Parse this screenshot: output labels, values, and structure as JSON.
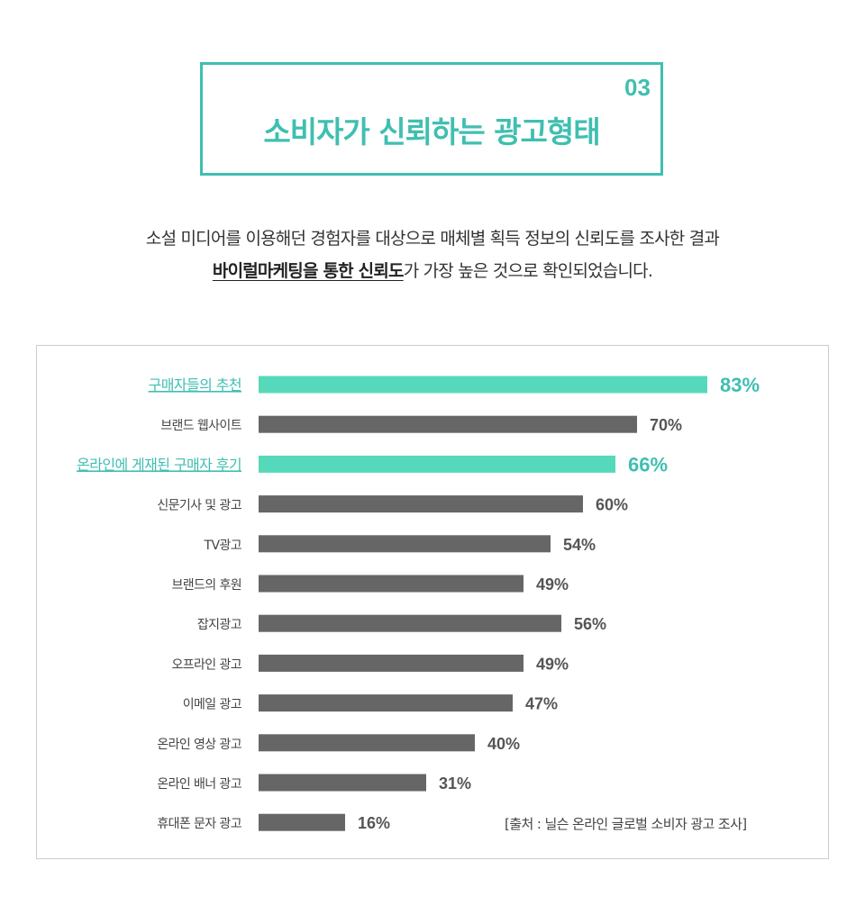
{
  "header": {
    "number": "03",
    "title": "소비자가 신뢰하는 광고형태"
  },
  "description": {
    "line1": "소설 미디어를 이용해던 경험자를 대상으로 매체별 획득 정보의 신뢰도를 조사한 결과",
    "line2_highlight": "바이럴마케팅을 통한 신뢰도",
    "line2_rest": "가 가장 높은 것으로 확인되었습니다."
  },
  "colors": {
    "accent": "#3fbfb0",
    "highlight_bar": "#55d9ba",
    "default_bar": "#666666",
    "default_text": "#444444"
  },
  "chart_data": {
    "type": "bar",
    "orientation": "horizontal",
    "categories": [
      "구매자들의 추천",
      "브랜드 웹사이트",
      "온라인에 게재된 구매자 후기",
      "신문기사 및 광고",
      "TV광고",
      "브랜드의 후원",
      "잡지광고",
      "오프라인 광고",
      "이메일 광고",
      "온라인 영상 광고",
      "온라인 배너 광고",
      "휴대폰 문자 광고"
    ],
    "values": [
      83,
      70,
      66,
      60,
      54,
      49,
      56,
      49,
      47,
      40,
      31,
      16
    ],
    "data_labels": [
      "83%",
      "70%",
      "66%",
      "60%",
      "54%",
      "49%",
      "56%",
      "49%",
      "47%",
      "40%",
      "31%",
      "16%"
    ],
    "highlighted": [
      true,
      false,
      true,
      false,
      false,
      false,
      false,
      false,
      false,
      false,
      false,
      false
    ],
    "xlim": [
      0,
      100
    ],
    "grid": false,
    "title": "",
    "xlabel": "",
    "ylabel": ""
  },
  "source": "[출처 : 닐슨 온라인 글로벌 소비자 광고 조사]"
}
